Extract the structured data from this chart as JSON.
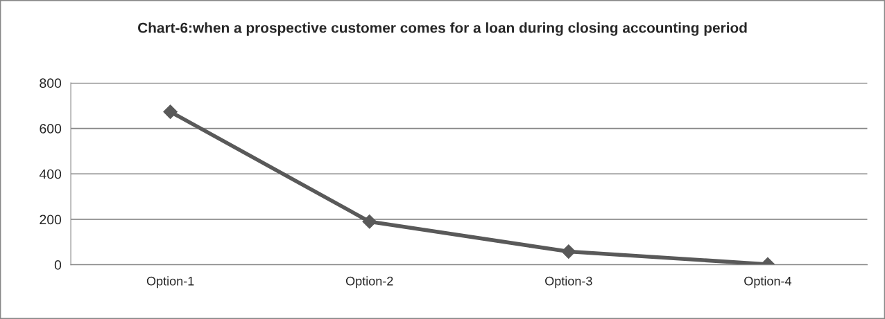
{
  "chart_data": {
    "type": "line",
    "title": "Chart-6:when a prospective customer comes for a loan during closing accounting period",
    "categories": [
      "Option-1",
      "Option-2",
      "Option-3",
      "Option-4"
    ],
    "series": [
      {
        "color": "#595959",
        "values": [
          673,
          190,
          58,
          2
        ]
      }
    ],
    "ylim": [
      0,
      800
    ],
    "yticks": [
      0,
      200,
      400,
      600,
      800
    ],
    "grid": "y",
    "marker": "diamond",
    "line_style": "solid",
    "legend": false
  }
}
